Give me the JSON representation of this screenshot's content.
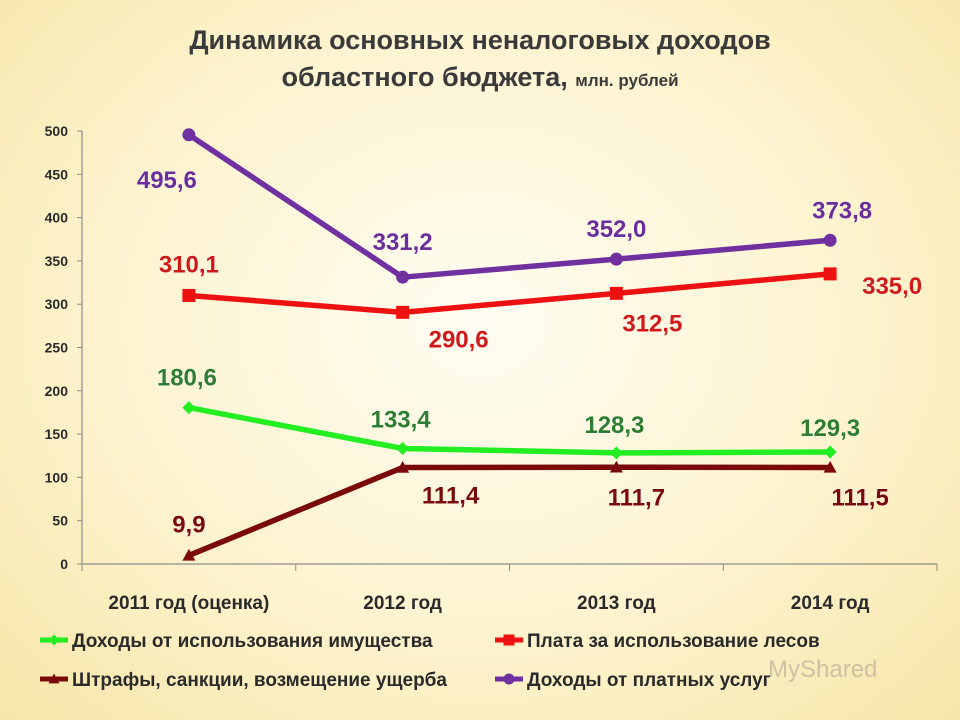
{
  "title": {
    "line1": "Динамика основных неналоговых доходов",
    "line2": "областного бюджета,",
    "unit": "млн. рублей"
  },
  "watermark": "MyShared",
  "chart_data": {
    "type": "line",
    "categories": [
      "2011 год (оценка)",
      "2012 год",
      "2013 год",
      "2014 год"
    ],
    "ylim": [
      0,
      500
    ],
    "yticks": [
      0,
      50,
      100,
      150,
      200,
      250,
      300,
      350,
      400,
      450,
      500
    ],
    "grid": false,
    "legend_position": "bottom",
    "series": [
      {
        "name": "Доходы от использования имущества",
        "values": [
          180.6,
          133.4,
          128.3,
          129.3
        ],
        "labels": [
          "180,6",
          "133,4",
          "128,3",
          "129,3"
        ],
        "color": "#22ee22",
        "label_color": "#2e7d32",
        "marker": "diamond"
      },
      {
        "name": "Плата за использование лесов",
        "values": [
          310.1,
          290.6,
          312.5,
          335.0
        ],
        "labels": [
          "310,1",
          "290,6",
          "312,5",
          "335,0"
        ],
        "color": "#ee1111",
        "label_color": "#d01a1a",
        "marker": "square"
      },
      {
        "name": "Штрафы, санкции, возмещение ущерба",
        "values": [
          9.9,
          111.4,
          111.7,
          111.5
        ],
        "labels": [
          "9,9",
          "111,4",
          "111,7",
          "111,5"
        ],
        "color": "#7a0a0a",
        "label_color": "#7a0a0a",
        "marker": "triangle"
      },
      {
        "name": "Доходы от платных услуг",
        "values": [
          495.6,
          331.2,
          352.0,
          373.8
        ],
        "labels": [
          "495,6",
          "331,2",
          "352,0",
          "373,8"
        ],
        "color": "#7030a0",
        "label_color": "#6a2d9a",
        "marker": "circle"
      }
    ]
  }
}
